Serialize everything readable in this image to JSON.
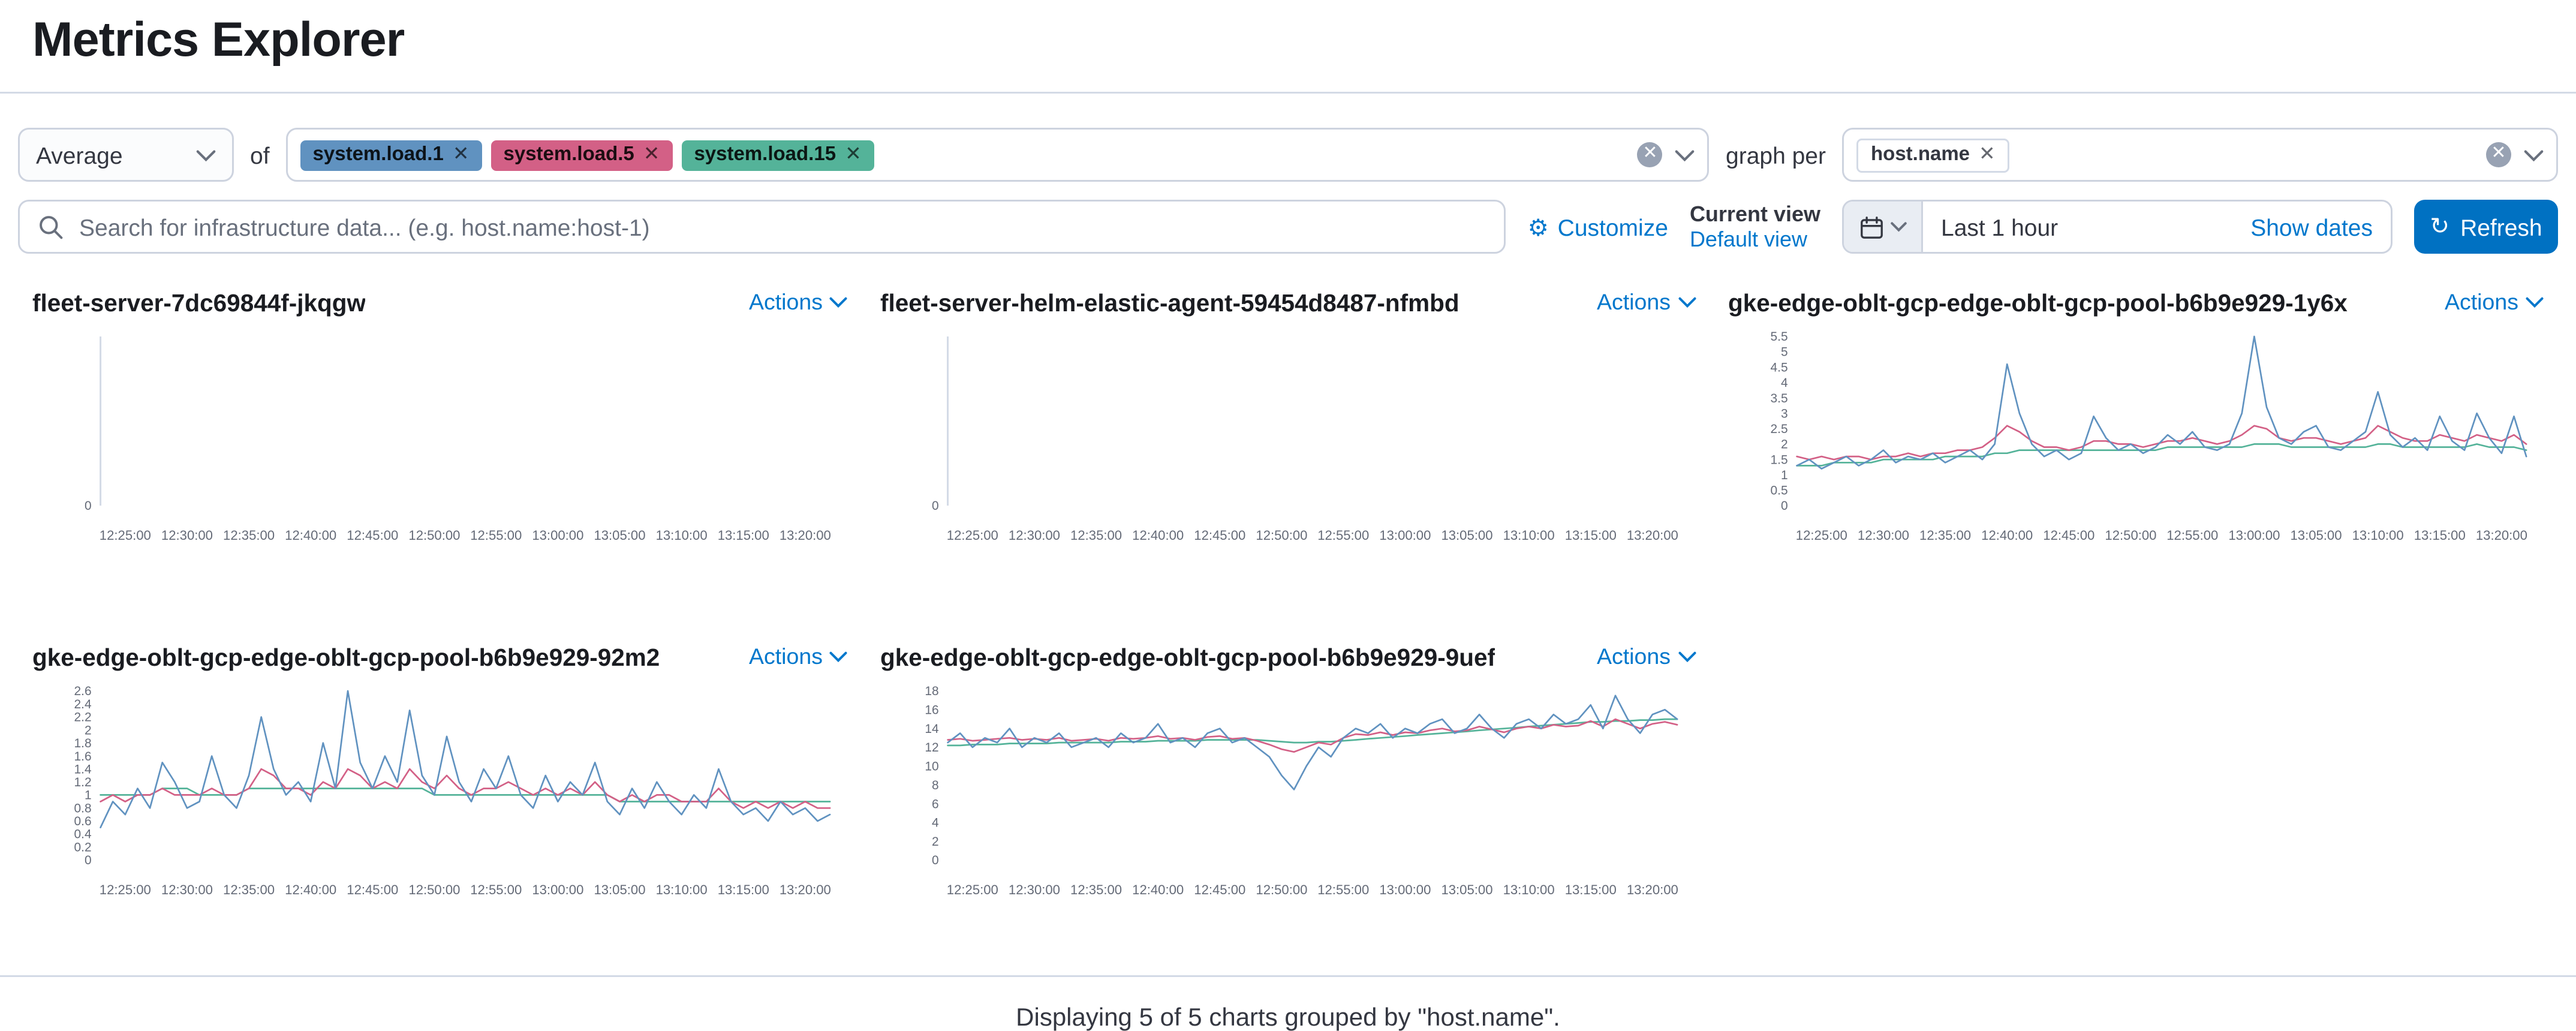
{
  "page": {
    "title": "Metrics Explorer",
    "footer": "Displaying 5 of 5 charts grouped by \"host.name\"."
  },
  "toolbar": {
    "aggregation": {
      "value": "Average"
    },
    "of_label": "of",
    "metrics": [
      {
        "label": "system.load.1",
        "color": "#6092C0"
      },
      {
        "label": "system.load.5",
        "color": "#D36086"
      },
      {
        "label": "system.load.15",
        "color": "#54B399"
      }
    ],
    "graph_per_label": "graph per",
    "group_by": [
      {
        "label": "host.name"
      }
    ],
    "search": {
      "placeholder": "Search for infrastructure data... (e.g. host.name:host-1)"
    },
    "customize_label": "Customize",
    "view": {
      "current_label": "Current view",
      "selected": "Default view"
    },
    "datepicker": {
      "value": "Last 1 hour",
      "show_dates_label": "Show dates"
    },
    "refresh_label": "Refresh",
    "accent_color": "#0077cc"
  },
  "x_axis": {
    "labels": [
      "12:25:00",
      "12:30:00",
      "12:35:00",
      "12:40:00",
      "12:45:00",
      "12:50:00",
      "12:55:00",
      "13:00:00",
      "13:05:00",
      "13:10:00",
      "13:15:00",
      "13:20:00"
    ]
  },
  "charts": [
    {
      "title": "fleet-server-7dc69844f-jkqgw",
      "actions_label": "Actions",
      "type": "line",
      "y_ticks": [
        "0"
      ],
      "series": []
    },
    {
      "title": "fleet-server-helm-elastic-agent-59454d8487-nfmbd",
      "actions_label": "Actions",
      "type": "line",
      "y_ticks": [
        "0"
      ],
      "series": []
    },
    {
      "title": "gke-edge-oblt-gcp-edge-oblt-gcp-pool-b6b9e929-1y6x",
      "actions_label": "Actions",
      "type": "line",
      "y_ticks": [
        "5.5",
        "5",
        "4.5",
        "4",
        "3.5",
        "3",
        "2.5",
        "2",
        "1.5",
        "1",
        "0.5",
        "0"
      ],
      "series": [
        {
          "name": "system.load.15",
          "color": "#54B399",
          "values": [
            1.3,
            1.3,
            1.3,
            1.4,
            1.4,
            1.4,
            1.4,
            1.5,
            1.5,
            1.5,
            1.5,
            1.5,
            1.6,
            1.6,
            1.6,
            1.6,
            1.7,
            1.7,
            1.8,
            1.8,
            1.8,
            1.8,
            1.8,
            1.8,
            1.8,
            1.8,
            1.8,
            1.8,
            1.8,
            1.8,
            1.9,
            1.9,
            1.9,
            1.9,
            1.9,
            1.9,
            1.9,
            2.0,
            2.0,
            2.0,
            1.9,
            1.9,
            1.9,
            1.9,
            1.9,
            1.9,
            1.9,
            2.0,
            2.0,
            1.9,
            1.9,
            1.9,
            1.9,
            1.9,
            1.9,
            2.0,
            1.9,
            1.9,
            1.9,
            1.8
          ]
        },
        {
          "name": "system.load.5",
          "color": "#D36086",
          "values": [
            1.6,
            1.5,
            1.6,
            1.5,
            1.6,
            1.6,
            1.5,
            1.6,
            1.6,
            1.7,
            1.6,
            1.7,
            1.7,
            1.8,
            1.8,
            1.9,
            2.2,
            2.6,
            2.4,
            2.1,
            1.9,
            1.9,
            1.8,
            1.9,
            2.1,
            2.1,
            2.0,
            2.0,
            1.9,
            2.0,
            2.1,
            2.1,
            2.2,
            2.1,
            2.0,
            2.1,
            2.3,
            2.6,
            2.5,
            2.2,
            2.1,
            2.2,
            2.2,
            2.1,
            2.0,
            2.1,
            2.2,
            2.6,
            2.4,
            2.2,
            2.1,
            2.1,
            2.3,
            2.2,
            2.1,
            2.3,
            2.2,
            2.1,
            2.3,
            2.0
          ]
        },
        {
          "name": "system.load.1",
          "color": "#6092C0",
          "values": [
            1.3,
            1.5,
            1.2,
            1.4,
            1.6,
            1.3,
            1.5,
            1.8,
            1.4,
            1.6,
            1.5,
            1.7,
            1.4,
            1.6,
            1.8,
            1.5,
            2.0,
            4.6,
            3.0,
            2.0,
            1.6,
            1.8,
            1.5,
            1.7,
            2.9,
            2.2,
            1.8,
            2.0,
            1.7,
            1.9,
            2.3,
            2.0,
            2.4,
            1.9,
            1.8,
            2.0,
            3.0,
            5.6,
            3.2,
            2.2,
            2.0,
            2.4,
            2.6,
            1.9,
            1.8,
            2.1,
            2.4,
            3.7,
            2.3,
            1.9,
            2.2,
            1.8,
            2.9,
            2.1,
            1.8,
            3.0,
            2.2,
            1.7,
            2.9,
            1.6
          ]
        }
      ]
    },
    {
      "title": "gke-edge-oblt-gcp-edge-oblt-gcp-pool-b6b9e929-92m2",
      "actions_label": "Actions",
      "type": "line",
      "y_ticks": [
        "2.6",
        "2.4",
        "2.2",
        "2",
        "1.8",
        "1.6",
        "1.4",
        "1.2",
        "1",
        "0.8",
        "0.6",
        "0.4",
        "0.2",
        "0"
      ],
      "series": [
        {
          "name": "system.load.15",
          "color": "#54B399",
          "values": [
            1.0,
            1.0,
            1.0,
            1.0,
            1.0,
            1.1,
            1.1,
            1.1,
            1.0,
            1.0,
            1.0,
            1.0,
            1.1,
            1.1,
            1.1,
            1.1,
            1.1,
            1.1,
            1.1,
            1.1,
            1.1,
            1.1,
            1.1,
            1.1,
            1.1,
            1.1,
            1.1,
            1.0,
            1.0,
            1.0,
            1.0,
            1.0,
            1.0,
            1.0,
            1.0,
            1.0,
            1.0,
            1.0,
            1.0,
            1.0,
            1.0,
            1.0,
            0.9,
            0.9,
            0.9,
            0.9,
            0.9,
            0.9,
            0.9,
            0.9,
            0.9,
            0.9,
            0.9,
            0.9,
            0.9,
            0.9,
            0.9,
            0.9,
            0.9,
            0.9
          ]
        },
        {
          "name": "system.load.5",
          "color": "#D36086",
          "values": [
            0.9,
            1.0,
            0.9,
            1.0,
            1.0,
            1.1,
            1.0,
            1.0,
            1.0,
            1.1,
            1.0,
            1.0,
            1.1,
            1.4,
            1.3,
            1.1,
            1.1,
            1.0,
            1.2,
            1.1,
            1.4,
            1.3,
            1.1,
            1.2,
            1.1,
            1.4,
            1.2,
            1.1,
            1.3,
            1.1,
            1.0,
            1.1,
            1.1,
            1.2,
            1.1,
            1.0,
            1.1,
            1.0,
            1.1,
            1.0,
            1.2,
            1.0,
            0.9,
            1.0,
            0.9,
            1.0,
            1.0,
            0.9,
            0.9,
            0.9,
            1.1,
            0.9,
            0.8,
            0.9,
            0.8,
            0.9,
            0.8,
            0.9,
            0.8,
            0.8
          ]
        },
        {
          "name": "system.load.1",
          "color": "#6092C0",
          "values": [
            0.5,
            0.9,
            0.7,
            1.1,
            0.8,
            1.5,
            1.2,
            0.8,
            0.9,
            1.6,
            1.0,
            0.8,
            1.3,
            2.2,
            1.4,
            1.0,
            1.2,
            0.9,
            1.8,
            1.1,
            2.6,
            1.5,
            1.1,
            1.6,
            1.2,
            2.3,
            1.3,
            1.0,
            1.9,
            1.2,
            0.9,
            1.4,
            1.1,
            1.6,
            1.0,
            0.8,
            1.3,
            0.9,
            1.2,
            1.0,
            1.5,
            0.9,
            0.7,
            1.1,
            0.8,
            1.2,
            0.9,
            0.7,
            1.0,
            0.8,
            1.4,
            0.9,
            0.7,
            0.8,
            0.6,
            0.9,
            0.7,
            0.8,
            0.6,
            0.7
          ]
        }
      ]
    },
    {
      "title": "gke-edge-oblt-gcp-edge-oblt-gcp-pool-b6b9e929-9uef",
      "actions_label": "Actions",
      "type": "line",
      "y_ticks": [
        "18",
        "16",
        "14",
        "12",
        "10",
        "8",
        "6",
        "4",
        "2",
        "0"
      ],
      "series": [
        {
          "name": "system.load.15",
          "color": "#54B399",
          "values": [
            12.2,
            12.2,
            12.3,
            12.3,
            12.3,
            12.4,
            12.4,
            12.4,
            12.4,
            12.5,
            12.5,
            12.5,
            12.5,
            12.5,
            12.6,
            12.6,
            12.6,
            12.7,
            12.7,
            12.7,
            12.7,
            12.8,
            12.8,
            12.8,
            12.8,
            12.8,
            12.7,
            12.6,
            12.5,
            12.5,
            12.6,
            12.6,
            12.7,
            12.8,
            12.9,
            13.0,
            13.1,
            13.2,
            13.3,
            13.4,
            13.5,
            13.6,
            13.7,
            13.8,
            13.9,
            14.0,
            14.1,
            14.2,
            14.3,
            14.4,
            14.5,
            14.6,
            14.7,
            14.7,
            14.8,
            14.8,
            14.9,
            14.9,
            15.0,
            15.0
          ]
        },
        {
          "name": "system.load.5",
          "color": "#D36086",
          "values": [
            12.8,
            12.9,
            12.7,
            12.8,
            12.9,
            13.0,
            12.8,
            12.9,
            12.8,
            13.0,
            12.7,
            12.8,
            12.9,
            12.7,
            13.0,
            12.9,
            13.0,
            13.2,
            12.9,
            13.0,
            12.8,
            13.1,
            13.2,
            12.9,
            13.0,
            12.7,
            12.3,
            11.8,
            11.5,
            12.0,
            12.5,
            12.3,
            13.0,
            13.4,
            13.3,
            13.6,
            13.3,
            13.6,
            13.5,
            13.8,
            14.0,
            13.7,
            13.8,
            14.2,
            13.9,
            13.6,
            14.0,
            14.2,
            14.0,
            14.4,
            14.2,
            14.3,
            14.8,
            14.2,
            15.0,
            14.5,
            14.0,
            14.5,
            14.7,
            14.4
          ]
        },
        {
          "name": "system.load.1",
          "color": "#6092C0",
          "values": [
            12.5,
            13.5,
            12.0,
            13.0,
            12.5,
            14.0,
            12.0,
            13.0,
            12.5,
            13.5,
            12.0,
            12.5,
            13.0,
            12.0,
            13.5,
            12.5,
            13.0,
            14.5,
            12.5,
            13.0,
            12.0,
            13.5,
            14.0,
            12.5,
            13.0,
            12.0,
            11.0,
            9.0,
            7.5,
            10.0,
            12.0,
            11.0,
            13.0,
            14.0,
            13.5,
            14.5,
            13.0,
            14.0,
            13.5,
            14.5,
            15.0,
            13.5,
            14.0,
            15.5,
            14.0,
            13.0,
            14.5,
            15.0,
            14.0,
            15.5,
            14.5,
            15.0,
            16.5,
            14.0,
            17.5,
            15.0,
            13.5,
            15.5,
            16.0,
            15.0
          ]
        }
      ]
    }
  ]
}
